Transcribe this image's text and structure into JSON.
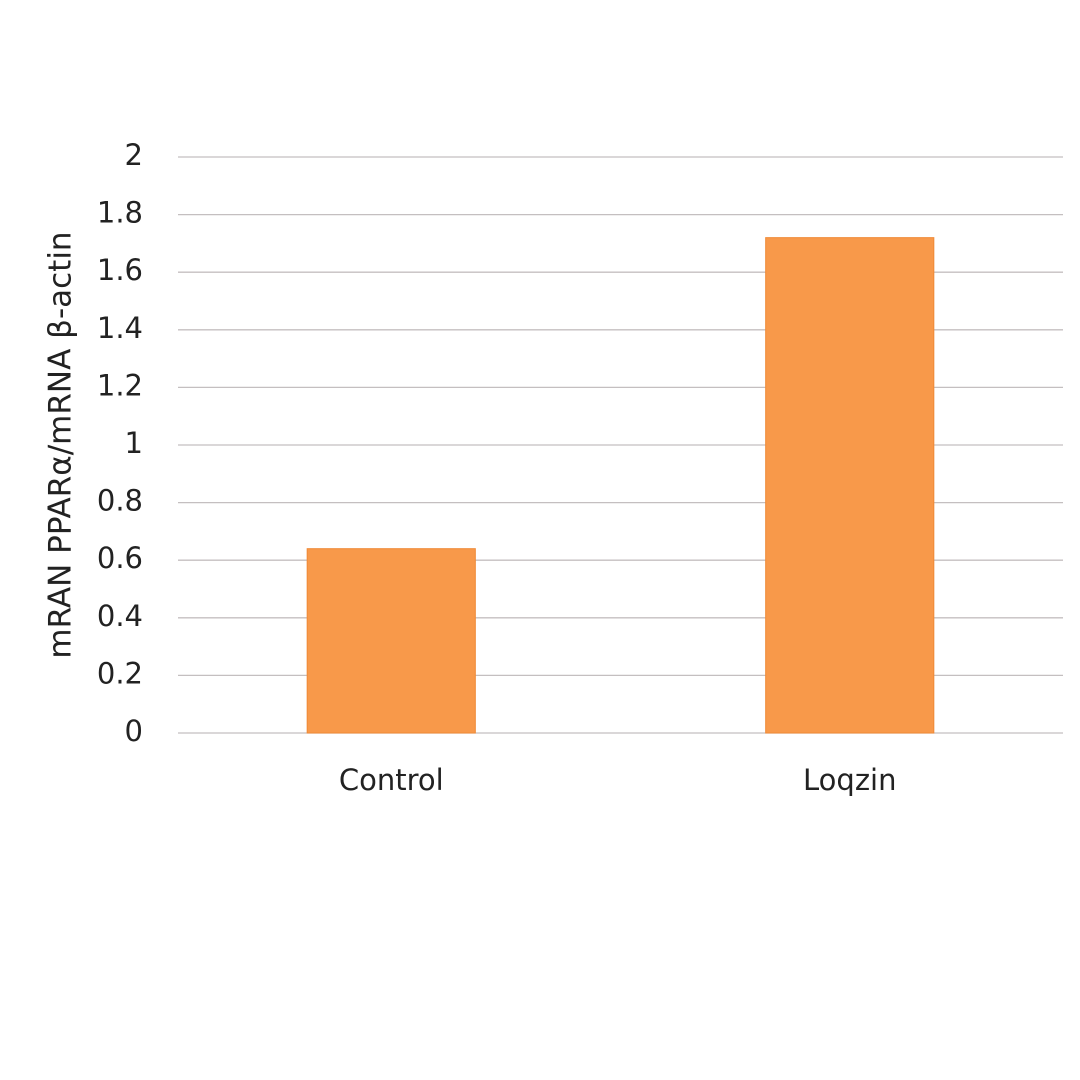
{
  "chart_data": {
    "type": "bar",
    "y_label": "mRAN PPARα/mRNA β-actin",
    "categories": [
      "Control",
      "Loqzin"
    ],
    "values": [
      0.64,
      1.72
    ],
    "color": "#f8994a",
    "ylim": [
      0,
      2
    ],
    "yticks": [
      0,
      0.2,
      0.4,
      0.6,
      0.8,
      1,
      1.2,
      1.4,
      1.6,
      1.8,
      2
    ],
    "grid": true
  }
}
